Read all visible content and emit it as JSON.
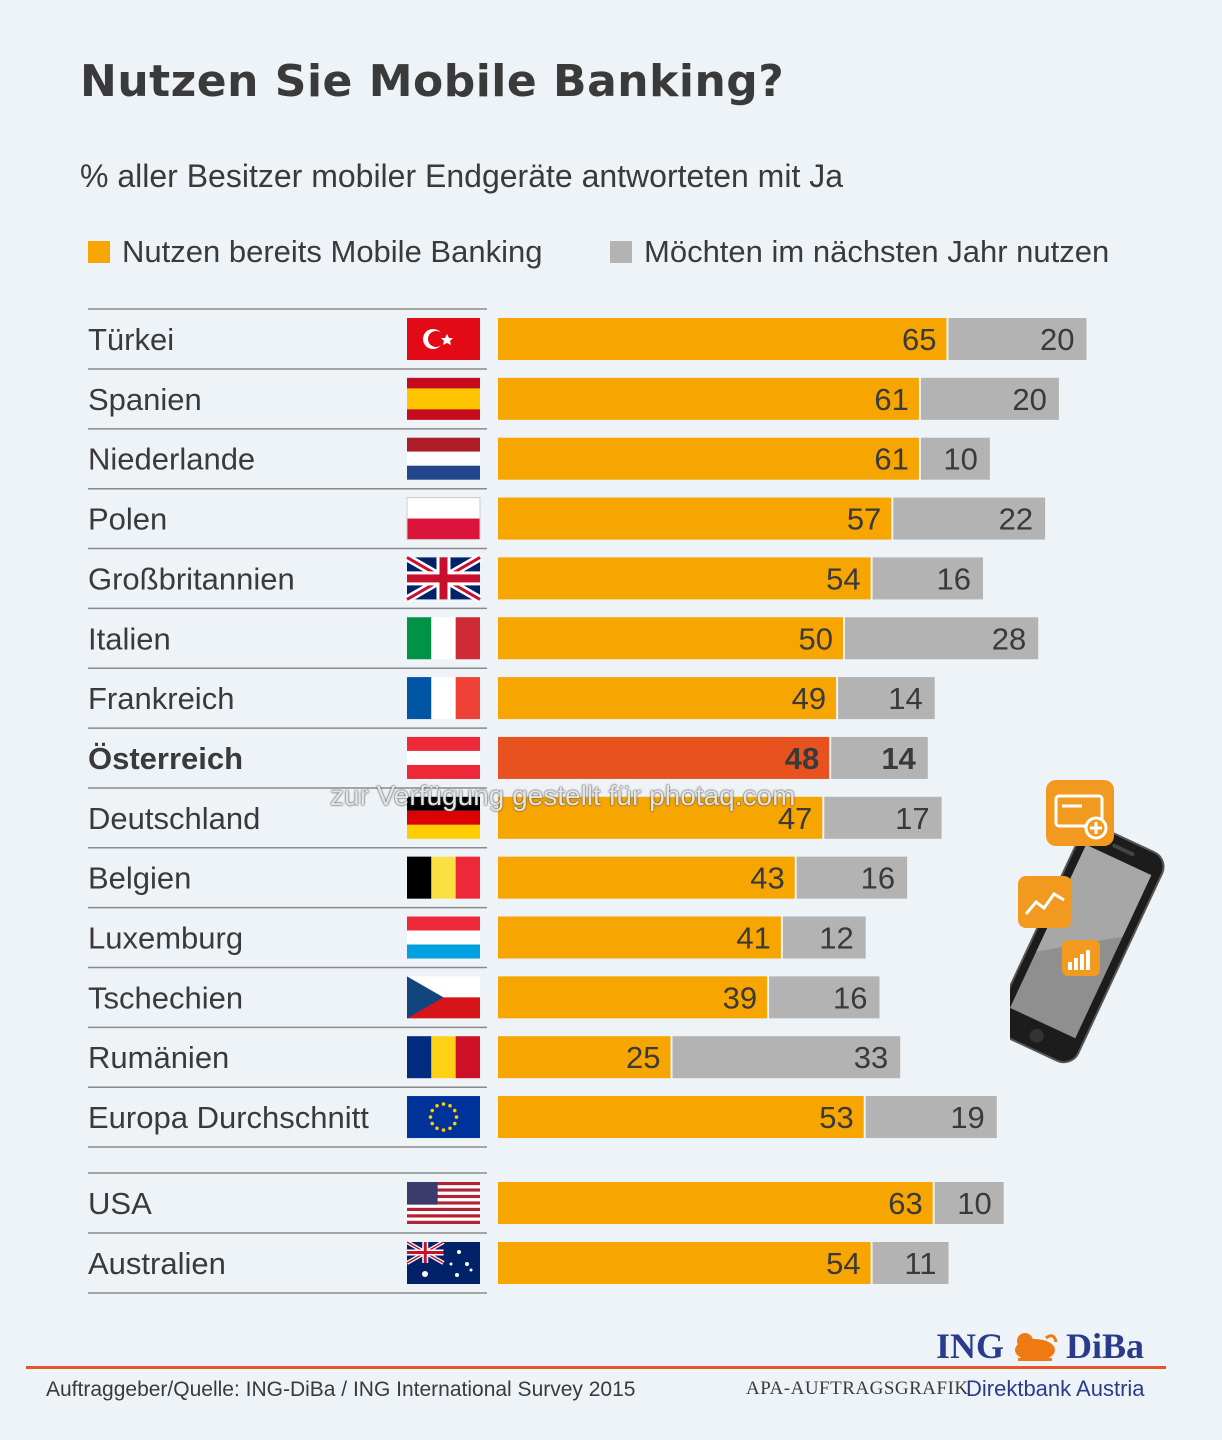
{
  "title": "Nutzen Sie Mobile Banking?",
  "subtitle": "% aller Besitzer mobiler Endgeräte antworteten mit Ja",
  "legend": {
    "series_1": "Nutzen bereits Mobile Banking",
    "series_2": "Möchten im nächsten Jahr nutzen"
  },
  "colors": {
    "orange": "#f7a500",
    "highlight": "#e8521e",
    "gray": "#b3b3b3",
    "brand_blue": "#2a3b8c",
    "rule": "#e8542a"
  },
  "chart_data": {
    "type": "bar",
    "orientation": "horizontal",
    "stacked": true,
    "categories": [
      "Türkei",
      "Spanien",
      "Niederlande",
      "Polen",
      "Großbritannien",
      "Italien",
      "Frankreich",
      "Österreich",
      "Deutschland",
      "Belgien",
      "Luxemburg",
      "Tschechien",
      "Rumänien",
      "Europa Durchschnitt",
      "USA",
      "Australien"
    ],
    "flags": [
      "turkey",
      "spain",
      "netherlands",
      "poland",
      "uk",
      "italy",
      "france",
      "austria",
      "germany",
      "belgium",
      "luxembourg",
      "czechia",
      "romania",
      "eu",
      "usa",
      "australia"
    ],
    "highlighted_category": "Österreich",
    "series": [
      {
        "name": "Nutzen bereits Mobile Banking",
        "values": [
          65,
          61,
          61,
          57,
          54,
          50,
          49,
          48,
          47,
          43,
          41,
          39,
          25,
          53,
          63,
          54
        ]
      },
      {
        "name": "Möchten im nächsten Jahr nutzen",
        "values": [
          20,
          20,
          10,
          22,
          16,
          28,
          14,
          14,
          17,
          16,
          12,
          16,
          33,
          19,
          10,
          11
        ]
      }
    ],
    "xlim": [
      0,
      100
    ],
    "grid": false,
    "legend_position": "top"
  },
  "footer": {
    "source": "Auftraggeber/Quelle: ING-DiBa / ING International Survey 2015",
    "apa": "APA-AUFTRAGSGRAFIK",
    "brand_left": "ING",
    "brand_right": "DiBa",
    "brand_sub": "Direktbank Austria"
  },
  "watermark": "zur Verfügung gestellt für photaq.com",
  "icons": [
    "smartphone-icon",
    "card-plus-icon",
    "trend-line-icon",
    "signal-bars-icon"
  ]
}
